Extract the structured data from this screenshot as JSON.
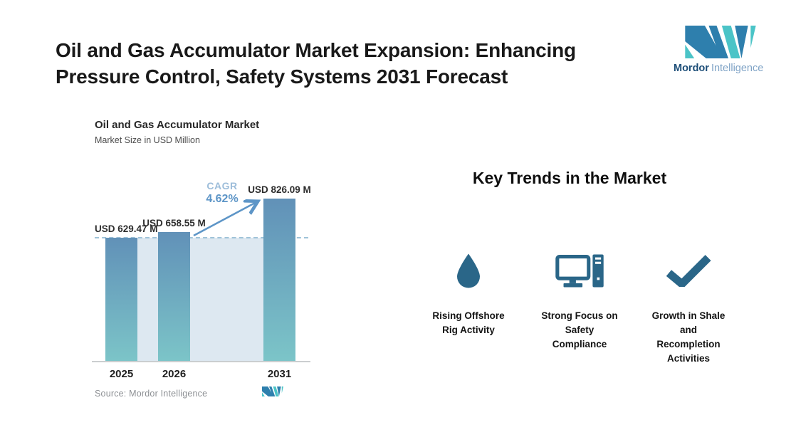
{
  "header": {
    "title": "Oil and Gas Accumulator Market Expansion: Enhancing\nPressure Control, Safety Systems 2031 Forecast",
    "brand": {
      "name_bold": "Mordor",
      "name_light": "Intelligence"
    }
  },
  "chart": {
    "title": "Oil and Gas Accumulator Market",
    "subtitle": "Market Size in USD Million",
    "cagr_label": "CAGR",
    "cagr_value": "4.62%",
    "source_label": "Source: Mordor Intelligence"
  },
  "chart_data": {
    "type": "bar",
    "title": "Oil and Gas Accumulator Market",
    "ylabel": "Market Size in USD Million",
    "categories": [
      "2025",
      "2026",
      "2031"
    ],
    "values": [
      629.47,
      658.55,
      826.09
    ],
    "value_labels": [
      "USD 629.47 M",
      "USD 658.55 M",
      "USD 826.09 M"
    ],
    "cagr_percent": 4.62,
    "baseline_reference_value": 629.47,
    "grid": false,
    "legend": "none",
    "annotations": [
      "CAGR 4.62% arrow from 2026 bar to 2031 bar",
      "dashed reference line at 2025 level"
    ]
  },
  "trends": {
    "heading": "Key Trends in the Market",
    "items": [
      {
        "icon": "water-drop-icon",
        "label": "Rising Offshore\nRig Activity"
      },
      {
        "icon": "desktop-computer-icon",
        "label": "Strong Focus on\nSafety\nCompliance"
      },
      {
        "icon": "checkmark-icon",
        "label": "Growth in Shale\nand\nRecompletion\nActivities"
      }
    ]
  },
  "colors": {
    "bar_gradient_top": "#6191b8",
    "bar_gradient_bottom": "#7cc5c8",
    "baseline_band": "#dde8f1",
    "dashed_line": "#9fc3d9",
    "arrow": "#5d95c7",
    "cagr_label_text": "#9dbdda",
    "cagr_value_text": "#5d95c7",
    "trend_icon": "#2a6688",
    "brand_blue": "#2e7fad",
    "brand_teal": "#4bc4c7",
    "brand_navy": "#1d4e78",
    "brand_light_blue": "#7fa3c6"
  }
}
